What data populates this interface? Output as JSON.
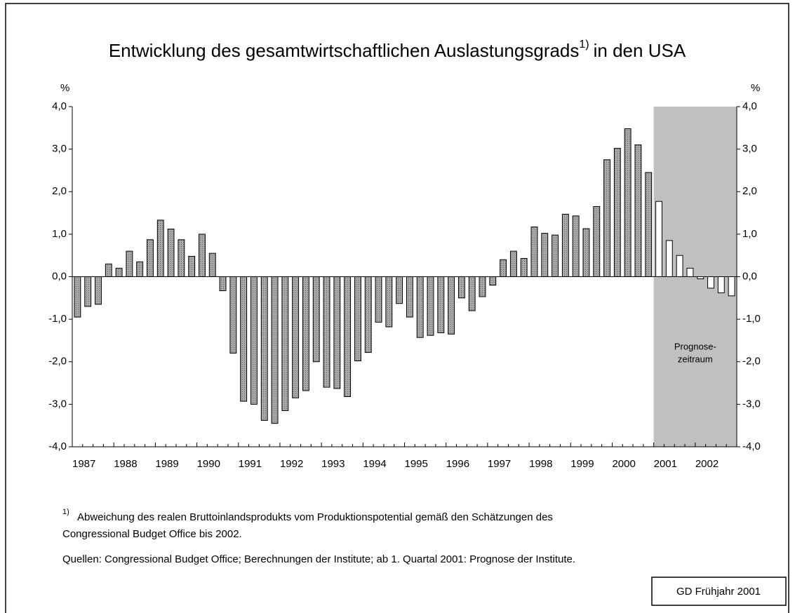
{
  "chart_data": {
    "type": "bar",
    "title": "Entwicklung des gesamtwirtschaftlichen Auslastungsgrads",
    "title_superscript": "1)",
    "title_suffix": "in den USA",
    "y_unit": "%",
    "y2_unit": "%",
    "categories": [
      "1987",
      null,
      null,
      null,
      "1988",
      null,
      null,
      null,
      "1989",
      null,
      null,
      null,
      "1990",
      null,
      null,
      null,
      "1991",
      null,
      null,
      null,
      "1992",
      null,
      null,
      null,
      "1993",
      null,
      null,
      null,
      "1994",
      null,
      null,
      null,
      "1995",
      null,
      null,
      null,
      "1996",
      null,
      null,
      null,
      "1997",
      null,
      null,
      null,
      "1998",
      null,
      null,
      null,
      "1999",
      null,
      null,
      null,
      "2000",
      null,
      null,
      null,
      "2001",
      null,
      null,
      null,
      "2002",
      null,
      null,
      null
    ],
    "series": [
      {
        "color": "#a0a0a0",
        "values": [
          -0.95,
          -0.7,
          -0.65,
          0.3,
          0.2,
          0.6,
          0.35,
          0.87,
          1.33,
          1.12,
          0.87,
          0.48,
          1.0,
          0.55,
          -0.33,
          -1.8,
          -2.93,
          -3.0,
          -3.38,
          -3.45,
          -3.15,
          -2.85,
          -2.68,
          -2.0,
          -2.6,
          -2.63,
          -2.82,
          -1.98,
          -1.78,
          -1.07,
          -1.18,
          -0.63,
          -0.95,
          -1.43,
          -1.38,
          -1.32,
          -1.35,
          -0.5,
          -0.8,
          -0.47,
          -0.2,
          0.4,
          0.6,
          0.43,
          1.17,
          1.02,
          0.98,
          1.47,
          1.43,
          1.13,
          1.65,
          2.75,
          3.02,
          3.48,
          3.1,
          2.45,
          null,
          null,
          null,
          null,
          null,
          null,
          null,
          null
        ]
      },
      {
        "color": "#ffffff",
        "values": [
          null,
          null,
          null,
          null,
          null,
          null,
          null,
          null,
          null,
          null,
          null,
          null,
          null,
          null,
          null,
          null,
          null,
          null,
          null,
          null,
          null,
          null,
          null,
          null,
          null,
          null,
          null,
          null,
          null,
          null,
          null,
          null,
          null,
          null,
          null,
          null,
          null,
          null,
          null,
          null,
          null,
          null,
          null,
          null,
          null,
          null,
          null,
          null,
          null,
          null,
          null,
          null,
          null,
          null,
          null,
          null,
          1.77,
          0.85,
          0.5,
          0.2,
          -0.05,
          -0.27,
          -0.38,
          -0.45
        ]
      }
    ],
    "ylim": [
      -4,
      4
    ],
    "yticks": [
      {
        "value": -4,
        "label": "-4,0"
      },
      {
        "value": -3,
        "label": "-3,0"
      },
      {
        "value": -2,
        "label": "-2,0"
      },
      {
        "value": -1,
        "label": "-1,0"
      },
      {
        "value": 0,
        "label": "0,0"
      },
      {
        "value": 1,
        "label": "1,0"
      },
      {
        "value": 2,
        "label": "2,0"
      },
      {
        "value": 3,
        "label": "3,0"
      },
      {
        "value": 4,
        "label": "4,0"
      }
    ],
    "y2lim": [
      -4,
      4
    ],
    "y2ticks": [
      {
        "value": -4,
        "label": "-4,0"
      },
      {
        "value": -3,
        "label": "-3,0"
      },
      {
        "value": -2,
        "label": "-2,0"
      },
      {
        "value": -1,
        "label": "-1,0"
      },
      {
        "value": 0,
        "label": "0,0"
      },
      {
        "value": 1,
        "label": "1,0"
      },
      {
        "value": 2,
        "label": "2,0"
      },
      {
        "value": 3,
        "label": "3,0"
      },
      {
        "value": 4,
        "label": "4,0"
      }
    ],
    "forecast_label": [
      "Prognose-",
      "zeitraum"
    ],
    "forecast_shade_color": "#c0c0c0",
    "footnote_marker": "1)",
    "footnote": [
      "Abweichung des realen Bruttoinlandsprodukts vom Produktionspotential gemäß den Schätzungen des",
      "Congressional Budget Office bis 2002."
    ],
    "source": "Quellen: Congressional Budget Office; Berechnungen der Institute; ab 1. Quartal 2001: Prognose der Institute.",
    "badge": "GD Frühjahr 2001"
  }
}
